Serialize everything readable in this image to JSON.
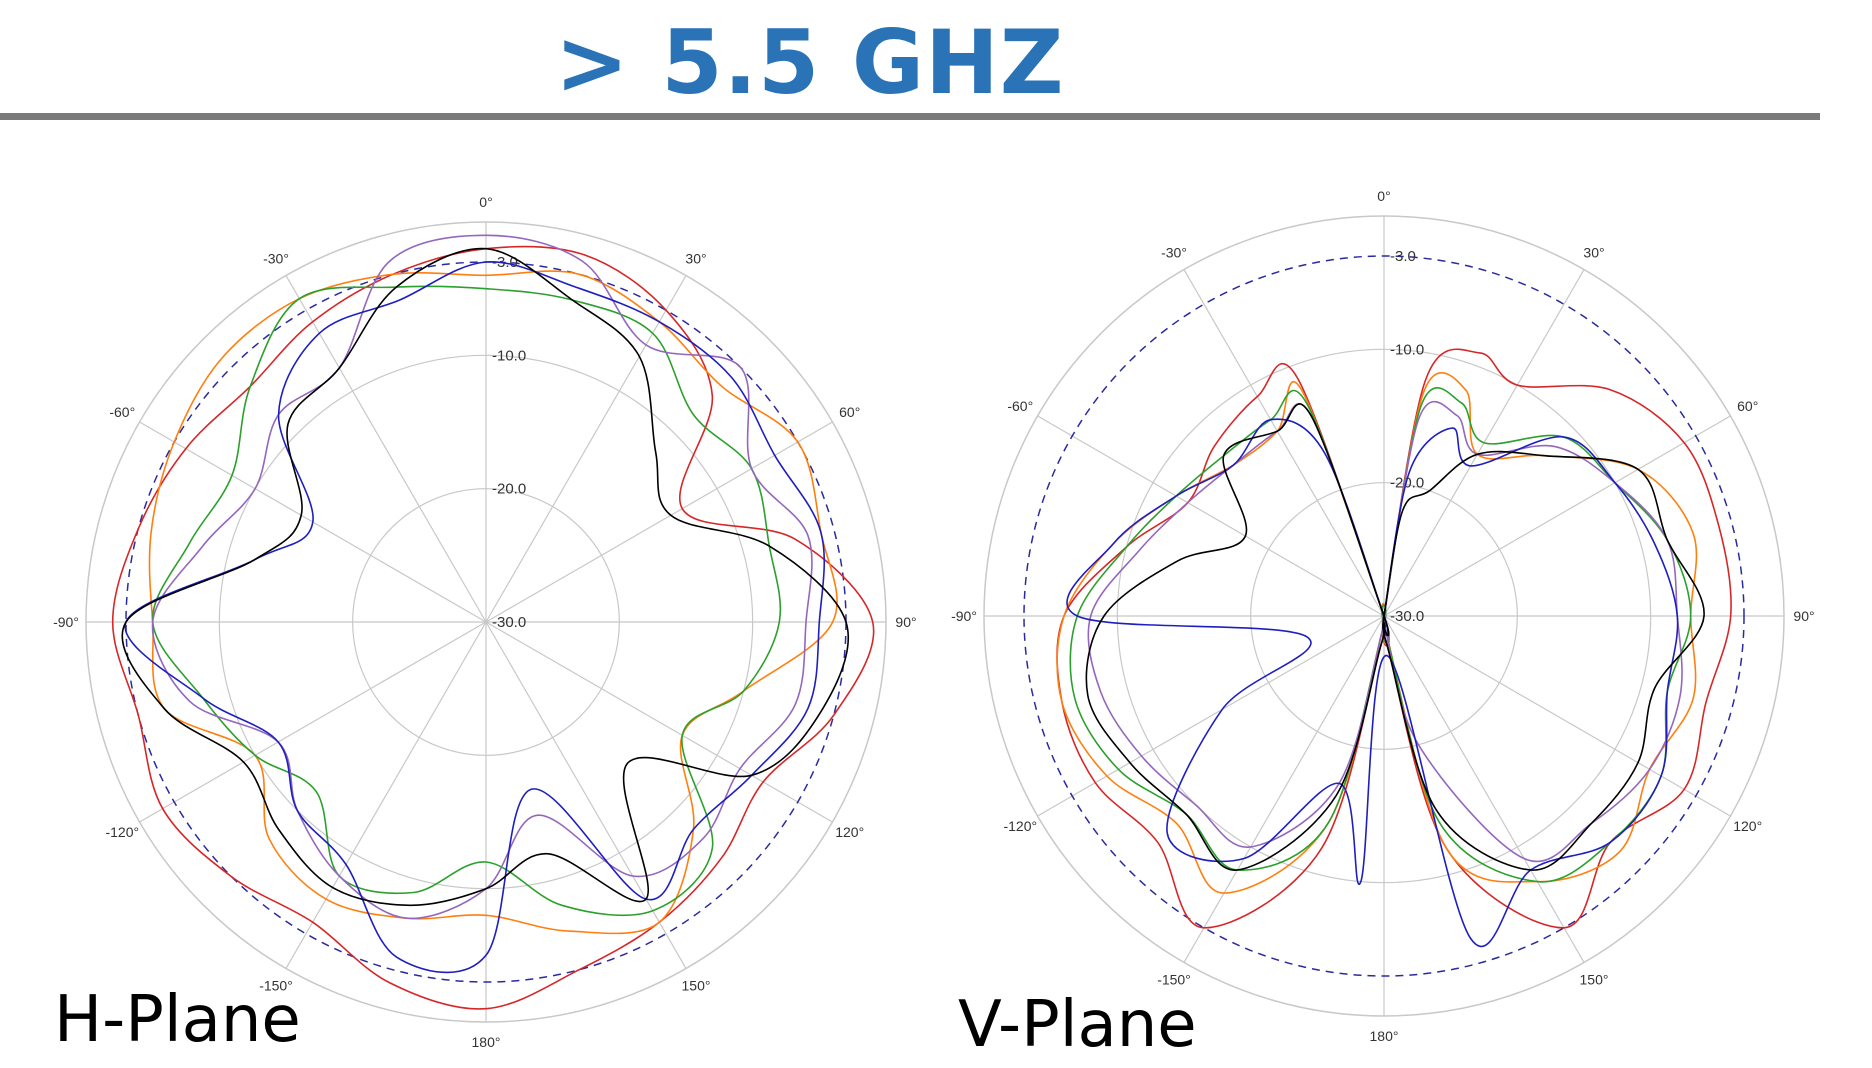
{
  "header": {
    "title": "> 5.5 GHZ"
  },
  "chart_data": [
    {
      "type": "polar",
      "plane_label": "H-Plane",
      "radial_axis": {
        "min": -30,
        "max": 0,
        "ring_labels": [
          "-3.0",
          "-10.0",
          "-20.0",
          "-30.0"
        ],
        "ring_values": [
          -3,
          -10,
          -20,
          -30
        ]
      },
      "angle_ticks": [
        {
          "deg": 0,
          "label": "0°"
        },
        {
          "deg": 30,
          "label": "30°"
        },
        {
          "deg": 60,
          "label": "60°"
        },
        {
          "deg": 90,
          "label": "90°"
        },
        {
          "deg": 120,
          "label": "120°"
        },
        {
          "deg": 150,
          "label": "150°"
        },
        {
          "deg": 180,
          "label": "180°"
        },
        {
          "deg": -150,
          "label": "-150°"
        },
        {
          "deg": -120,
          "label": "-120°"
        },
        {
          "deg": -90,
          "label": "-90°"
        },
        {
          "deg": -60,
          "label": "-60°"
        },
        {
          "deg": -30,
          "label": "-30°"
        }
      ],
      "reference_circle_db": -3,
      "series": [
        {
          "color": "#d62728",
          "angles": [
            0,
            15,
            30,
            45,
            60,
            75,
            90,
            105,
            120,
            135,
            150,
            165,
            180,
            195,
            210,
            225,
            240,
            255,
            270,
            285,
            300,
            315,
            330,
            345
          ],
          "values": [
            -2,
            -1.5,
            -3,
            -6,
            -13,
            -6,
            -1,
            -3,
            -6,
            -5,
            -4,
            -3,
            -1,
            -2,
            -4,
            -3,
            -2,
            -3,
            -2,
            -3,
            -4,
            -5,
            -4,
            -3
          ]
        },
        {
          "color": "#ff7f0e",
          "angles": [
            0,
            15,
            30,
            45,
            60,
            75,
            90,
            105,
            120,
            135,
            150,
            165,
            180,
            195,
            210,
            225,
            240,
            255,
            270,
            285,
            300,
            315,
            330,
            345
          ],
          "values": [
            -4,
            -3,
            -4,
            -5,
            -3,
            -4,
            -4,
            -10,
            -13,
            -8,
            -4,
            -6,
            -8,
            -7,
            -6,
            -7,
            -10,
            -5,
            -5,
            -4,
            -3,
            -2,
            -2,
            -3
          ]
        },
        {
          "color": "#2ca02c",
          "angles": [
            0,
            15,
            30,
            45,
            60,
            75,
            90,
            105,
            120,
            135,
            150,
            165,
            180,
            195,
            210,
            225,
            240,
            255,
            270,
            285,
            300,
            315,
            330,
            345
          ],
          "values": [
            -5,
            -5,
            -5,
            -8,
            -7,
            -8,
            -8,
            -10,
            -13,
            -6,
            -5,
            -8,
            -12,
            -9,
            -8,
            -12,
            -10,
            -8,
            -5,
            -7,
            -8,
            -5,
            -2,
            -4
          ]
        },
        {
          "color": "#9467bd",
          "angles": [
            0,
            15,
            30,
            45,
            60,
            75,
            90,
            105,
            120,
            135,
            150,
            165,
            180,
            195,
            210,
            225,
            240,
            255,
            270,
            285,
            300,
            315,
            330,
            345
          ],
          "values": [
            -1,
            -2,
            -6,
            -3,
            -7,
            -5,
            -6,
            -6,
            -8,
            -7,
            -8,
            -15,
            -10,
            -7,
            -8,
            -10,
            -12,
            -7,
            -5,
            -8,
            -10,
            -8,
            -8,
            -2
          ]
        },
        {
          "color": "#1f1fbf",
          "angles": [
            0,
            15,
            30,
            45,
            60,
            75,
            90,
            105,
            120,
            135,
            150,
            165,
            180,
            195,
            210,
            225,
            240,
            255,
            270,
            285,
            300,
            315,
            330,
            345
          ],
          "values": [
            -3,
            -4,
            -4,
            -4,
            -5,
            -4,
            -5,
            -5,
            -7,
            -8,
            -6,
            -17,
            -5,
            -4,
            -9,
            -10,
            -12,
            -8,
            -3,
            -12,
            -15,
            -8,
            -5,
            -5
          ]
        },
        {
          "color": "#000000",
          "angles": [
            0,
            15,
            30,
            45,
            60,
            75,
            90,
            105,
            120,
            135,
            150,
            165,
            180,
            195,
            210,
            225,
            240,
            255,
            270,
            285,
            300,
            315,
            330,
            345
          ],
          "values": [
            -2,
            -5,
            -7,
            -12,
            -14,
            -8,
            -3,
            -4,
            -7,
            -15,
            -6,
            -12,
            -10,
            -8,
            -7,
            -8,
            -9,
            -5,
            -3,
            -12,
            -14,
            -9,
            -8,
            -4
          ]
        }
      ]
    },
    {
      "type": "polar",
      "plane_label": "V-Plane",
      "radial_axis": {
        "min": -30,
        "max": 0,
        "ring_labels": [
          "-3.0",
          "-10.0",
          "-20.0",
          "-30.0"
        ],
        "ring_values": [
          -3,
          -10,
          -20,
          -30
        ]
      },
      "angle_ticks": [
        {
          "deg": 0,
          "label": "0°"
        },
        {
          "deg": 30,
          "label": "30°"
        },
        {
          "deg": 60,
          "label": "60°"
        },
        {
          "deg": 90,
          "label": "90°"
        },
        {
          "deg": 120,
          "label": "120°"
        },
        {
          "deg": 150,
          "label": "150°"
        },
        {
          "deg": 180,
          "label": "180°"
        },
        {
          "deg": -150,
          "label": "-150°"
        },
        {
          "deg": -120,
          "label": "-120°"
        },
        {
          "deg": -90,
          "label": "-90°"
        },
        {
          "deg": -60,
          "label": "-60°"
        },
        {
          "deg": -30,
          "label": "-30°"
        }
      ],
      "reference_circle_db": -3,
      "series": [
        {
          "color": "#d62728",
          "angles": [
            0,
            10,
            20,
            30,
            45,
            60,
            75,
            90,
            105,
            120,
            135,
            150,
            165,
            175,
            185,
            195,
            210,
            225,
            240,
            255,
            270,
            285,
            300,
            315,
            330,
            340,
            350
          ],
          "values": [
            -30,
            -12,
            -9,
            -10,
            -6,
            -4,
            -4,
            -4,
            -5,
            -4,
            -6,
            -3,
            -12,
            -28,
            -28,
            -12,
            -3,
            -6,
            -5,
            -5,
            -6,
            -10,
            -13,
            -12,
            -11,
            -11,
            -30
          ]
        },
        {
          "color": "#ff7f0e",
          "angles": [
            0,
            10,
            20,
            30,
            45,
            60,
            75,
            90,
            105,
            120,
            135,
            150,
            165,
            175,
            185,
            195,
            210,
            225,
            240,
            255,
            270,
            285,
            300,
            315,
            330,
            340,
            350
          ],
          "values": [
            -30,
            -13,
            -12,
            -16,
            -13,
            -8,
            -6,
            -7,
            -6,
            -7,
            -5,
            -7,
            -12,
            -29,
            -29,
            -14,
            -6,
            -8,
            -6,
            -5,
            -6,
            -9,
            -12,
            -14,
            -14,
            -12,
            -30
          ]
        },
        {
          "color": "#2ca02c",
          "angles": [
            0,
            10,
            20,
            30,
            45,
            60,
            75,
            90,
            105,
            120,
            135,
            150,
            165,
            175,
            185,
            195,
            210,
            225,
            240,
            255,
            270,
            285,
            300,
            315,
            330,
            340,
            350
          ],
          "values": [
            -30,
            -14,
            -13,
            -15,
            -11,
            -10,
            -8,
            -7,
            -8,
            -6,
            -6,
            -7,
            -14,
            -29,
            -29,
            -14,
            -8,
            -9,
            -7,
            -6,
            -7,
            -10,
            -12,
            -13,
            -13,
            -13,
            -30
          ]
        },
        {
          "color": "#9467bd",
          "angles": [
            0,
            10,
            20,
            30,
            45,
            60,
            75,
            90,
            105,
            120,
            135,
            150,
            165,
            175,
            185,
            195,
            210,
            225,
            240,
            255,
            270,
            285,
            300,
            315,
            330,
            340,
            350
          ],
          "values": [
            -30,
            -15,
            -14,
            -16,
            -12,
            -10,
            -8,
            -8,
            -7,
            -7,
            -8,
            -9,
            -20,
            -29,
            -29,
            -17,
            -10,
            -10,
            -9,
            -8,
            -8,
            -11,
            -13,
            -14,
            -14,
            -14,
            -30
          ]
        },
        {
          "color": "#1f1fbf",
          "angles": [
            0,
            10,
            20,
            30,
            45,
            60,
            75,
            90,
            105,
            120,
            135,
            150,
            165,
            175,
            185,
            195,
            210,
            225,
            240,
            255,
            270,
            285,
            300,
            315,
            330,
            340,
            350
          ],
          "values": [
            -30,
            -19,
            -15,
            -17,
            -11,
            -10,
            -9,
            -8,
            -8,
            -6,
            -6,
            -8,
            -5,
            -27,
            -10,
            -17,
            -9,
            -7,
            -16,
            -24,
            -7,
            -9,
            -12,
            -14,
            -13,
            -17,
            -30
          ]
        },
        {
          "color": "#000000",
          "angles": [
            0,
            10,
            20,
            30,
            45,
            60,
            75,
            90,
            105,
            120,
            135,
            150,
            165,
            175,
            185,
            195,
            210,
            225,
            240,
            255,
            270,
            285,
            300,
            315,
            330,
            340,
            350
          ],
          "values": [
            -30,
            -22,
            -20,
            -16,
            -13,
            -8,
            -8,
            -6,
            -9,
            -8,
            -8,
            -8,
            -15,
            -28,
            -28,
            -16,
            -8,
            -9,
            -8,
            -7,
            -9,
            -14,
            -18,
            -13,
            -14,
            -14,
            -30
          ]
        }
      ]
    }
  ]
}
